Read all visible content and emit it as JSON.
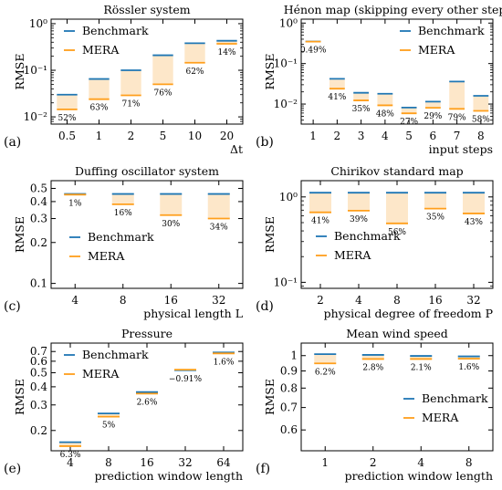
{
  "colors": {
    "benchmark": "#1f77b4",
    "mera": "#ff9f1c",
    "fill": "#fde7c9",
    "annotation": "#333333"
  },
  "chart_data": [
    {
      "type": "bar",
      "panel": "(a)",
      "title": "Rössler system",
      "xlabel": "Δt",
      "ylabel": "RMSE",
      "yscale": "log",
      "ylim": [
        0.007,
        1.25
      ],
      "yticks": [
        {
          "value": 0.01,
          "label": "10⁻²"
        },
        {
          "value": 0.1,
          "label": "10⁻¹"
        },
        {
          "value": 1,
          "label": "10⁰"
        }
      ],
      "legend": {
        "position": "top-left",
        "entries": [
          "Benchmark",
          "MERA"
        ]
      },
      "categories": [
        "0.5",
        "1",
        "2",
        "5",
        "10",
        "20"
      ],
      "series": [
        {
          "name": "Benchmark",
          "values": [
            0.03,
            0.065,
            0.1,
            0.21,
            0.38,
            0.43
          ]
        },
        {
          "name": "MERA",
          "values": [
            0.0145,
            0.024,
            0.029,
            0.05,
            0.145,
            0.37
          ]
        }
      ],
      "annotations": [
        "52%",
        "63%",
        "71%",
        "76%",
        "62%",
        "14%"
      ]
    },
    {
      "type": "bar",
      "panel": "(b)",
      "title": "Hénon map (skipping every other step)",
      "xlabel": "input steps",
      "ylabel": "RMSE",
      "yscale": "log",
      "ylim": [
        0.0032,
        1.25
      ],
      "yticks": [
        {
          "value": 0.01,
          "label": "10⁻²"
        },
        {
          "value": 0.1,
          "label": "10⁻¹"
        },
        {
          "value": 1,
          "label": "10⁰"
        }
      ],
      "legend": {
        "position": "top-right",
        "entries": [
          "Benchmark",
          "MERA"
        ]
      },
      "categories": [
        "1",
        "2",
        "3",
        "4",
        "5",
        "6",
        "7",
        "8"
      ],
      "series": [
        {
          "name": "Benchmark",
          "values": [
            0.35,
            0.042,
            0.019,
            0.018,
            0.0082,
            0.0115,
            0.036,
            0.016
          ]
        },
        {
          "name": "MERA",
          "values": [
            0.348,
            0.024,
            0.0123,
            0.0093,
            0.0059,
            0.0081,
            0.0076,
            0.0068
          ]
        }
      ],
      "annotations": [
        "0.49%",
        "41%",
        "35%",
        "48%",
        "27%",
        "29%",
        "79%",
        "58%"
      ]
    },
    {
      "type": "bar",
      "panel": "(c)",
      "title": "Duffing oscillator system",
      "xlabel": "physical length L",
      "ylabel": "RMSE",
      "yscale": "log",
      "ylim": [
        0.092,
        0.57
      ],
      "yticks": [
        {
          "value": 0.1,
          "label": "0.1"
        },
        {
          "value": 0.2,
          "label": "0.2"
        },
        {
          "value": 0.3,
          "label": "0.3"
        },
        {
          "value": 0.4,
          "label": "0.4"
        },
        {
          "value": 0.5,
          "label": "0.5"
        }
      ],
      "legend": {
        "position": "bottom-left",
        "entries": [
          "Benchmark",
          "MERA"
        ]
      },
      "categories": [
        "4",
        "8",
        "16",
        "32"
      ],
      "series": [
        {
          "name": "Benchmark",
          "values": [
            0.455,
            0.455,
            0.455,
            0.455
          ]
        },
        {
          "name": "MERA",
          "values": [
            0.45,
            0.382,
            0.318,
            0.3
          ]
        }
      ],
      "annotations": [
        "1%",
        "16%",
        "30%",
        "34%"
      ]
    },
    {
      "type": "bar",
      "panel": "(d)",
      "title": "Chirikov standard map",
      "xlabel": "physical degree of freedom P",
      "ylabel": "RMSE",
      "yscale": "log",
      "ylim": [
        0.085,
        1.55
      ],
      "yticks": [
        {
          "value": 0.1,
          "label": "10⁻¹"
        },
        {
          "value": 1,
          "label": "10⁰"
        }
      ],
      "legend": {
        "position": "bottom-left",
        "entries": [
          "Benchmark",
          "MERA"
        ]
      },
      "categories": [
        "2",
        "4",
        "8",
        "16",
        "32"
      ],
      "series": [
        {
          "name": "Benchmark",
          "values": [
            1.12,
            1.12,
            1.12,
            1.12,
            1.12
          ]
        },
        {
          "name": "MERA",
          "values": [
            0.66,
            0.69,
            0.49,
            0.73,
            0.64
          ]
        }
      ],
      "annotations": [
        "41%",
        "39%",
        "56%",
        "35%",
        "43%"
      ]
    },
    {
      "type": "bar",
      "panel": "(e)",
      "title": "Pressure",
      "xlabel": "prediction window length",
      "ylabel": "RMSE",
      "yscale": "log",
      "ylim": [
        0.145,
        0.8
      ],
      "yticks": [
        {
          "value": 0.2,
          "label": "0.2"
        },
        {
          "value": 0.3,
          "label": "0.3"
        },
        {
          "value": 0.4,
          "label": "0.4"
        },
        {
          "value": 0.5,
          "label": "0.5"
        },
        {
          "value": 0.6,
          "label": "0.6"
        },
        {
          "value": 0.7,
          "label": "0.7"
        }
      ],
      "legend": {
        "position": "top-left",
        "entries": [
          "Benchmark",
          "MERA"
        ]
      },
      "categories": [
        "4",
        "8",
        "16",
        "32",
        "64"
      ],
      "series": [
        {
          "name": "Benchmark",
          "values": [
            0.166,
            0.262,
            0.368,
            0.52,
            0.69
          ]
        },
        {
          "name": "MERA",
          "values": [
            0.156,
            0.249,
            0.359,
            0.525,
            0.679
          ]
        }
      ],
      "annotations": [
        "6.3%",
        "5%",
        "2.6%",
        "−0.91%",
        "1.6%"
      ]
    },
    {
      "type": "bar",
      "panel": "(f)",
      "title": "Mean wind speed",
      "xlabel": "prediction window length",
      "ylabel": "RMSE",
      "yscale": "log",
      "ylim": [
        0.52,
        1.09
      ],
      "yticks": [
        {
          "value": 0.6,
          "label": "0.6"
        },
        {
          "value": 0.7,
          "label": "0.7"
        },
        {
          "value": 0.8,
          "label": "0.8"
        },
        {
          "value": 0.9,
          "label": "0.9"
        },
        {
          "value": 1,
          "label": "1"
        }
      ],
      "legend": {
        "position": "bottom-right",
        "entries": [
          "Benchmark",
          "MERA"
        ]
      },
      "categories": [
        "1",
        "2",
        "4",
        "8"
      ],
      "series": [
        {
          "name": "Benchmark",
          "values": [
            1.01,
            1.005,
            0.998,
            0.995
          ]
        },
        {
          "name": "MERA",
          "values": [
            0.948,
            0.977,
            0.977,
            0.979
          ]
        }
      ],
      "annotations": [
        "6.2%",
        "2.8%",
        "2.1%",
        "1.6%"
      ]
    }
  ]
}
